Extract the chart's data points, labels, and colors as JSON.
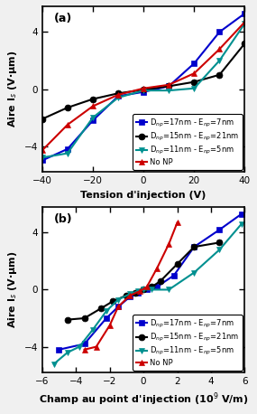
{
  "panel_a": {
    "title": "(a)",
    "xlabel": "Tension d'injection (V)",
    "ylabel": "Aire I$_s$ (V·μm)",
    "xlim": [
      -40,
      40
    ],
    "ylim": [
      -5.8,
      5.8
    ],
    "xticks": [
      -40,
      -20,
      0,
      20,
      40
    ],
    "yticks": [
      -4,
      0,
      4
    ],
    "series": [
      {
        "label": "D$_{np}$=17nm - E$_{np}$=7nm",
        "color": "#0000CC",
        "marker": "s",
        "markersize": 5,
        "x": [
          -40,
          -30,
          -20,
          -10,
          0,
          10,
          20,
          30,
          40
        ],
        "y": [
          -5.0,
          -4.2,
          -2.2,
          -0.5,
          -0.2,
          0.2,
          1.8,
          4.0,
          5.3
        ]
      },
      {
        "label": "D$_{np}$=15nm - E$_{np}$=21nm",
        "color": "#000000",
        "marker": "o",
        "markersize": 5,
        "x": [
          -40,
          -30,
          -20,
          -10,
          0,
          10,
          20,
          30,
          40
        ],
        "y": [
          -2.1,
          -1.3,
          -0.7,
          -0.3,
          -0.05,
          0.2,
          0.5,
          1.0,
          3.2
        ]
      },
      {
        "label": "D$_{np}$=11nm - E$_{np}$=5nm",
        "color": "#009090",
        "marker": "v",
        "markersize": 5,
        "x": [
          -40,
          -30,
          -20,
          -10,
          0,
          10,
          20,
          30,
          40
        ],
        "y": [
          -4.8,
          -4.5,
          -2.0,
          -0.6,
          -0.1,
          -0.1,
          0.05,
          2.0,
          4.6
        ]
      },
      {
        "label": "No NP",
        "color": "#CC0000",
        "marker": "^",
        "markersize": 5,
        "x": [
          -40,
          -30,
          -20,
          -10,
          0,
          10,
          20,
          30,
          40
        ],
        "y": [
          -4.3,
          -2.5,
          -1.2,
          -0.4,
          0.05,
          0.3,
          1.1,
          2.8,
          4.7
        ]
      }
    ]
  },
  "panel_b": {
    "title": "(b)",
    "xlabel": "Champ au point d'injection (10$^{9}$ V/m)",
    "ylabel": "Aire I$_s$ (V·μm)",
    "xlim": [
      -6,
      6
    ],
    "ylim": [
      -5.8,
      5.8
    ],
    "xticks": [
      -6,
      -4,
      -2,
      0,
      2,
      4,
      6
    ],
    "yticks": [
      -4,
      0,
      4
    ],
    "series": [
      {
        "label": "D$_{np}$=17nm - E$_{np}$=7nm",
        "color": "#0000CC",
        "marker": "s",
        "markersize": 5,
        "x": [
          -5.0,
          -3.5,
          -2.2,
          -1.5,
          -0.8,
          -0.3,
          0.2,
          0.8,
          1.8,
          3.0,
          4.5,
          5.8
        ],
        "y": [
          -4.2,
          -3.8,
          -2.0,
          -1.2,
          -0.5,
          -0.2,
          0.0,
          0.2,
          1.0,
          3.0,
          4.2,
          5.3
        ]
      },
      {
        "label": "D$_{np}$=15nm - E$_{np}$=21nm",
        "color": "#000000",
        "marker": "o",
        "markersize": 5,
        "x": [
          -4.5,
          -3.5,
          -2.5,
          -1.8,
          -1.0,
          -0.5,
          0.0,
          0.5,
          1.0,
          2.0,
          3.0,
          4.5
        ],
        "y": [
          -2.1,
          -2.0,
          -1.3,
          -0.8,
          -0.4,
          -0.2,
          0.0,
          0.2,
          0.6,
          1.8,
          3.0,
          3.3
        ]
      },
      {
        "label": "D$_{np}$=11nm - E$_{np}$=5nm",
        "color": "#009090",
        "marker": "v",
        "markersize": 5,
        "x": [
          -5.3,
          -4.5,
          -3.8,
          -3.0,
          -2.2,
          -1.5,
          -0.8,
          -0.3,
          0.0,
          0.5,
          1.5,
          3.0,
          4.5,
          5.8
        ],
        "y": [
          -5.2,
          -4.4,
          -4.0,
          -2.8,
          -1.5,
          -0.7,
          -0.3,
          -0.1,
          0.0,
          0.0,
          0.0,
          1.2,
          2.8,
          4.6
        ]
      },
      {
        "label": "No NP",
        "color": "#CC0000",
        "marker": "^",
        "markersize": 5,
        "x": [
          -3.5,
          -2.8,
          -2.0,
          -1.5,
          -0.8,
          -0.2,
          0.2,
          0.8,
          1.5,
          2.0
        ],
        "y": [
          -4.2,
          -4.0,
          -2.5,
          -1.2,
          -0.4,
          -0.1,
          0.2,
          1.5,
          3.2,
          4.7
        ]
      }
    ]
  },
  "figure_bg": "#f0f0f0",
  "axes_bg": "#ffffff",
  "legend_fontsize": 6.0,
  "axis_label_fontsize": 8,
  "tick_label_fontsize": 7.5,
  "title_fontsize": 9,
  "linewidth": 1.5
}
